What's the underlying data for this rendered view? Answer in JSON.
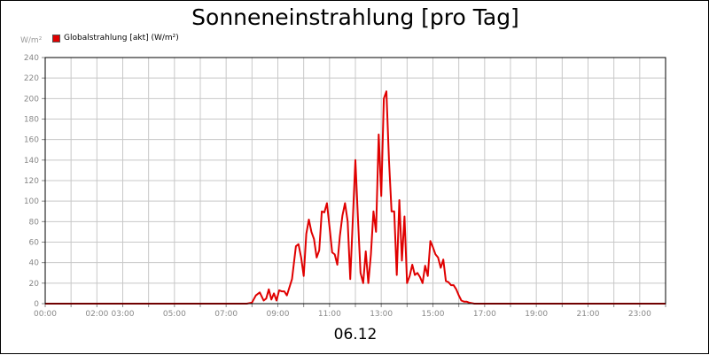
{
  "chart_data": {
    "type": "line",
    "title": "Sonneneinstrahlung [pro Tag]",
    "unit_label": "W/m²",
    "xlabel": "06.12",
    "ylabel": "",
    "ylim": [
      0,
      240
    ],
    "yticks": [
      0,
      20,
      40,
      60,
      80,
      100,
      120,
      140,
      160,
      180,
      200,
      220,
      240
    ],
    "xlim": [
      0,
      24
    ],
    "xticks": [
      {
        "h": 0,
        "label": "00:00"
      },
      {
        "h": 2,
        "label": "02:00"
      },
      {
        "h": 3,
        "label": "03:00"
      },
      {
        "h": 5,
        "label": "05:00"
      },
      {
        "h": 7,
        "label": "07:00"
      },
      {
        "h": 9,
        "label": "09:00"
      },
      {
        "h": 11,
        "label": "11:00"
      },
      {
        "h": 13,
        "label": "13:00"
      },
      {
        "h": 15,
        "label": "15:00"
      },
      {
        "h": 17,
        "label": "17:00"
      },
      {
        "h": 19,
        "label": "19:00"
      },
      {
        "h": 21,
        "label": "21:00"
      },
      {
        "h": 23,
        "label": "23:00"
      }
    ],
    "grid": true,
    "legend_position": "top-left",
    "series": [
      {
        "name": "Globalstrahlung [akt] (W/m²)",
        "color": "#e00000",
        "x": [
          0,
          7.8,
          8.0,
          8.15,
          8.3,
          8.45,
          8.55,
          8.65,
          8.75,
          8.85,
          8.95,
          9.05,
          9.15,
          9.25,
          9.35,
          9.45,
          9.55,
          9.7,
          9.8,
          9.9,
          10.0,
          10.1,
          10.2,
          10.3,
          10.4,
          10.5,
          10.6,
          10.7,
          10.8,
          10.9,
          11.0,
          11.1,
          11.2,
          11.3,
          11.4,
          11.5,
          11.6,
          11.7,
          11.8,
          11.9,
          12.0,
          12.1,
          12.2,
          12.3,
          12.4,
          12.5,
          12.6,
          12.7,
          12.8,
          12.9,
          13.0,
          13.1,
          13.2,
          13.3,
          13.4,
          13.5,
          13.6,
          13.7,
          13.8,
          13.9,
          14.0,
          14.1,
          14.2,
          14.3,
          14.4,
          14.5,
          14.6,
          14.7,
          14.8,
          14.9,
          15.0,
          15.1,
          15.2,
          15.3,
          15.4,
          15.5,
          15.6,
          15.7,
          15.8,
          15.9,
          16.0,
          16.1,
          16.2,
          16.3,
          16.4,
          16.6,
          16.8,
          17.0,
          24
        ],
        "values": [
          0,
          0,
          1,
          8,
          11,
          3,
          5,
          14,
          4,
          10,
          3,
          13,
          12,
          12,
          8,
          16,
          24,
          56,
          58,
          45,
          27,
          68,
          82,
          70,
          63,
          45,
          52,
          90,
          89,
          98,
          75,
          50,
          48,
          38,
          66,
          86,
          98,
          80,
          24,
          82,
          140,
          83,
          30,
          20,
          51,
          20,
          48,
          90,
          70,
          165,
          105,
          200,
          207,
          140,
          90,
          90,
          28,
          101,
          42,
          85,
          20,
          27,
          38,
          28,
          30,
          26,
          20,
          37,
          27,
          61,
          55,
          48,
          45,
          35,
          43,
          22,
          21,
          18,
          18,
          14,
          8,
          3,
          2,
          2,
          1,
          0,
          0,
          0,
          0
        ]
      }
    ]
  }
}
